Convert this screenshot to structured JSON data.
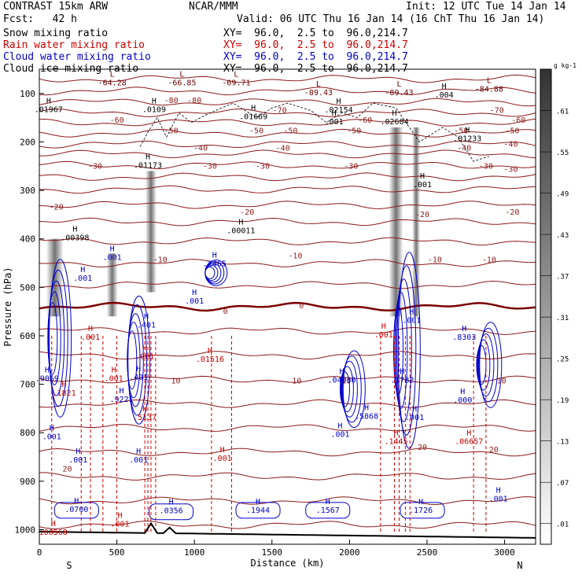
{
  "header": {
    "model": "CONTRAST 15km ARW",
    "org": "NCAR/MMM",
    "init": "Init: 12 UTC Tue 14 Jan 14",
    "fcst": "Fcst:   42 h",
    "valid": "Valid: 06 UTC Thu 16 Jan 14 (16 ChT Thu 16 Jan 14)"
  },
  "legend": [
    {
      "label": "Snow mixing ratio",
      "xy": "XY=  96.0,  2.5 to  96.0,214.7",
      "color": "#000000"
    },
    {
      "label": "Rain water mixing ratio",
      "xy": "XY=  96.0,  2.5 to  96.0,214.7",
      "color": "#cc0000"
    },
    {
      "label": "Cloud water mixing ratio",
      "xy": "XY=  96.0,  2.5 to  96.0,214.7",
      "color": "#0000cc"
    },
    {
      "label": "Cloud ice mixing ratio",
      "xy": "XY=  96.0,  2.5 to  96.0,214.7",
      "color": "#000000"
    }
  ],
  "chart_data": {
    "type": "heatmap",
    "xlabel": "Distance (km)",
    "ylabel": "Pressure (hPa)",
    "xlim": [
      0,
      3200
    ],
    "ylim": [
      1030,
      50
    ],
    "x_ticks": [
      "0",
      "500",
      "1000",
      "1500",
      "2000",
      "2500",
      "3000"
    ],
    "y_ticks": [
      "100",
      "200",
      "300",
      "400",
      "500",
      "600",
      "700",
      "800",
      "900",
      "1000"
    ],
    "south_label": "S",
    "north_label": "N",
    "colorbar": {
      "unit": "g kg-1",
      "ticks": [
        ".01",
        ".07",
        ".13",
        ".19",
        ".25",
        ".31",
        ".37",
        ".43",
        ".49",
        ".55",
        ".61"
      ]
    },
    "temperature_contours": [
      {
        "label": "-80",
        "x": 850,
        "p": 120
      },
      {
        "label": "-80",
        "x": 1000,
        "p": 120
      },
      {
        "label": "-70",
        "x": 1550,
        "p": 140
      },
      {
        "label": "-70",
        "x": 2950,
        "p": 140
      },
      {
        "label": "-60",
        "x": 500,
        "p": 160
      },
      {
        "label": "-60",
        "x": 2100,
        "p": 160
      },
      {
        "label": "-60",
        "x": 3090,
        "p": 160
      },
      {
        "label": "-50",
        "x": 850,
        "p": 182
      },
      {
        "label": "-50",
        "x": 1400,
        "p": 182
      },
      {
        "label": "-50",
        "x": 1620,
        "p": 182
      },
      {
        "label": "-50",
        "x": 2030,
        "p": 182
      },
      {
        "label": "-50",
        "x": 2720,
        "p": 182
      },
      {
        "label": "-50",
        "x": 3050,
        "p": 182
      },
      {
        "label": "-40",
        "x": 1040,
        "p": 218
      },
      {
        "label": "-40",
        "x": 1570,
        "p": 218
      },
      {
        "label": "-40",
        "x": 2740,
        "p": 218
      },
      {
        "label": "-40",
        "x": 3040,
        "p": 210
      },
      {
        "label": "-30",
        "x": 360,
        "p": 255
      },
      {
        "label": "-30",
        "x": 1100,
        "p": 255
      },
      {
        "label": "-30",
        "x": 1440,
        "p": 255
      },
      {
        "label": "-30",
        "x": 2010,
        "p": 255
      },
      {
        "label": "-30",
        "x": 2880,
        "p": 255
      },
      {
        "label": "-30",
        "x": 3040,
        "p": 262
      },
      {
        "label": "-20",
        "x": 110,
        "p": 340
      },
      {
        "label": "-20",
        "x": 1340,
        "p": 350
      },
      {
        "label": "-20",
        "x": 2470,
        "p": 355
      },
      {
        "label": "-20",
        "x": 3050,
        "p": 350
      },
      {
        "label": "-10",
        "x": 780,
        "p": 448
      },
      {
        "label": "-10",
        "x": 1650,
        "p": 440
      },
      {
        "label": "-10",
        "x": 2550,
        "p": 448
      },
      {
        "label": "-10",
        "x": 2900,
        "p": 448
      },
      {
        "label": "0",
        "x": 1200,
        "p": 555
      },
      {
        "label": "0",
        "x": 1690,
        "p": 543
      },
      {
        "label": "10",
        "x": 1660,
        "p": 698
      },
      {
        "label": "10",
        "x": 880,
        "p": 698
      },
      {
        "label": "10",
        "x": 1980,
        "p": 698
      },
      {
        "label": "10",
        "x": 2980,
        "p": 698
      },
      {
        "label": "20",
        "x": 180,
        "p": 880
      },
      {
        "label": "20",
        "x": 2470,
        "p": 835
      },
      {
        "label": "20",
        "x": 2930,
        "p": 840
      }
    ],
    "extrema": [
      {
        "type": "L",
        "value": "-64.28",
        "x": 470,
        "p": 80,
        "color": "#660000"
      },
      {
        "type": "L",
        "value": "-66.85",
        "x": 920,
        "p": 80,
        "color": "#660000"
      },
      {
        "type": "L",
        "value": "-69.71",
        "x": 1270,
        "p": 80,
        "color": "#660000"
      },
      {
        "type": "L",
        "value": "-89.43",
        "x": 1800,
        "p": 100,
        "color": "#660000"
      },
      {
        "type": "L",
        "value": "-89.43",
        "x": 2320,
        "p": 100,
        "color": "#660000"
      },
      {
        "type": "L",
        "value": "-84.88",
        "x": 2900,
        "p": 93,
        "color": "#660000"
      },
      {
        "type": "H",
        "value": ".01967",
        "x": 60,
        "p": 135,
        "color": "#000000"
      },
      {
        "type": "H",
        "value": ".0109",
        "x": 740,
        "p": 135,
        "color": "#000000"
      },
      {
        "type": "H",
        "value": ".01669",
        "x": 1380,
        "p": 150,
        "color": "#000000"
      },
      {
        "type": "H",
        "value": ".02154",
        "x": 1930,
        "p": 136,
        "color": "#000000"
      },
      {
        "type": "H",
        "value": ".02604",
        "x": 2290,
        "p": 160,
        "color": "#000000"
      },
      {
        "type": "H",
        "value": ".004",
        "x": 2610,
        "p": 105,
        "color": "#000000"
      },
      {
        "type": "H",
        "value": ".001",
        "x": 1900,
        "p": 160,
        "color": "#000000"
      },
      {
        "type": "H",
        "value": ".01233",
        "x": 2760,
        "p": 195,
        "color": "#000000"
      },
      {
        "type": "H",
        "value": ".01173",
        "x": 700,
        "p": 250,
        "color": "#000000"
      },
      {
        "type": "H",
        "value": ".001",
        "x": 2470,
        "p": 290,
        "color": "#000000"
      },
      {
        "type": "H",
        "value": ".00011",
        "x": 1300,
        "p": 385,
        "color": "#000000"
      },
      {
        "type": "H",
        "value": ".00398",
        "x": 230,
        "p": 400,
        "color": "#000000"
      },
      {
        "type": "H",
        "value": ".2465",
        "x": 1130,
        "p": 453,
        "color": "#0000cc"
      },
      {
        "type": "H",
        "value": ".001",
        "x": 470,
        "p": 440,
        "color": "#0000cc"
      },
      {
        "type": "H",
        "value": ".001",
        "x": 280,
        "p": 483,
        "color": "#0000cc"
      },
      {
        "type": "H",
        "value": ".001",
        "x": 1000,
        "p": 530,
        "color": "#0000cc"
      },
      {
        "type": "H",
        "value": ".401",
        "x": 690,
        "p": 580,
        "color": "#0000cc"
      },
      {
        "type": "H",
        "value": ".001",
        "x": 680,
        "p": 645,
        "color": "#cc0000"
      },
      {
        "type": "H",
        "value": ".01516",
        "x": 1100,
        "p": 650,
        "color": "#cc0000"
      },
      {
        "type": "H",
        "value": ".001",
        "x": 330,
        "p": 605,
        "color": "#cc0000"
      },
      {
        "type": "H",
        "value": ".9069",
        "x": 50,
        "p": 690,
        "color": "#0000cc"
      },
      {
        "type": "H",
        "value": ".1821",
        "x": 160,
        "p": 720,
        "color": "#cc0000"
      },
      {
        "type": "H",
        "value": ".001",
        "x": 480,
        "p": 690,
        "color": "#cc0000"
      },
      {
        "type": "H",
        "value": ".401",
        "x": 640,
        "p": 688,
        "color": "#0000cc"
      },
      {
        "type": "H",
        "value": ".9221",
        "x": 530,
        "p": 733,
        "color": "#0000cc"
      },
      {
        "type": "H",
        "value": ".5137",
        "x": 680,
        "p": 770,
        "color": "#cc0000"
      },
      {
        "type": "H",
        "value": ".001",
        "x": 80,
        "p": 810,
        "color": "#0000cc"
      },
      {
        "type": "H",
        "value": ".001",
        "x": 250,
        "p": 858,
        "color": "#0000cc"
      },
      {
        "type": "H",
        "value": ".001",
        "x": 640,
        "p": 858,
        "color": "#0000cc"
      },
      {
        "type": "H",
        "value": ".001",
        "x": 1180,
        "p": 855,
        "color": "#cc0000"
      },
      {
        "type": "H",
        "value": ".0700",
        "x": 240,
        "p": 960,
        "color": "#0000cc"
      },
      {
        "type": "H",
        "value": ".0356",
        "x": 850,
        "p": 963,
        "color": "#0000cc"
      },
      {
        "type": "H",
        "value": ".1944",
        "x": 1410,
        "p": 962,
        "color": "#0000cc"
      },
      {
        "type": "H",
        "value": ".1567",
        "x": 1860,
        "p": 962,
        "color": "#0000cc"
      },
      {
        "type": "H",
        "value": ".1726",
        "x": 2460,
        "p": 962,
        "color": "#0000cc"
      },
      {
        "type": "H",
        "value": ".001",
        "x": 520,
        "p": 990,
        "color": "#cc0000"
      },
      {
        "type": "H",
        "value": "100568",
        "x": 90,
        "p": 1007,
        "color": "#cc0000"
      },
      {
        "type": "H",
        "value": ".04030",
        "x": 1950,
        "p": 693,
        "color": "#0000cc"
      },
      {
        "type": "H",
        "value": ".001",
        "x": 2220,
        "p": 600,
        "color": "#cc0000"
      },
      {
        "type": "H",
        "value": ".001",
        "x": 2400,
        "p": 570,
        "color": "#0000cc"
      },
      {
        "type": "H",
        "value": ".1782",
        "x": 2340,
        "p": 693,
        "color": "#0000cc"
      },
      {
        "type": "H",
        "value": ".5868",
        "x": 2110,
        "p": 768,
        "color": "#0000cc"
      },
      {
        "type": "H",
        "value": ".001",
        "x": 2420,
        "p": 770,
        "color": "#0000cc"
      },
      {
        "type": "H",
        "value": ".001",
        "x": 1940,
        "p": 805,
        "color": "#0000cc"
      },
      {
        "type": "H",
        "value": ".1445",
        "x": 2300,
        "p": 820,
        "color": "#cc0000"
      },
      {
        "type": "H",
        "value": ".8303",
        "x": 2740,
        "p": 605,
        "color": "#0000cc"
      },
      {
        "type": "H",
        "value": ".000",
        "x": 2730,
        "p": 735,
        "color": "#0000cc"
      },
      {
        "type": "H",
        "value": ".06657",
        "x": 2770,
        "p": 820,
        "color": "#cc0000"
      },
      {
        "type": "H",
        "value": ".001",
        "x": 2960,
        "p": 938,
        "color": "#0000cc"
      }
    ]
  }
}
